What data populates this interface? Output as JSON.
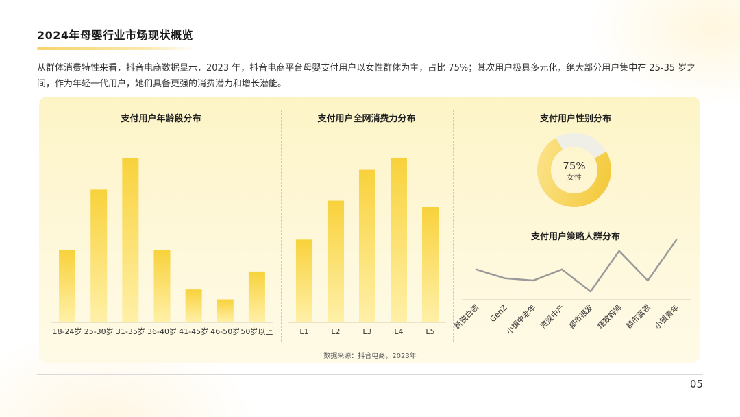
{
  "header": {
    "title": "2024年母婴行业市场现状概览",
    "intro": "从群体消费特性来看，抖音电商数据显示，2023 年，抖音电商平台母婴支付用户以女性群体为主，占比 75%；其次用户极具多元化，绝大部分用户集中在 25-35 岁之间，作为年轻一代用户，她们具备更强的消费潜力和增长潜能。"
  },
  "colors": {
    "bar_top": "#f8d23c",
    "bar_bottom": "#fff0a8",
    "line": "#9a9a9a",
    "donut_main": "#f5cc3a",
    "donut_rest": "#efefe7"
  },
  "chart_data": [
    {
      "type": "bar",
      "title": "支付用户年龄段分布",
      "categories": [
        "18-24岁",
        "25-30岁",
        "31-35岁",
        "36-40岁",
        "41-45岁",
        "46-50岁",
        "50岁以上"
      ],
      "values": [
        44,
        81,
        100,
        44,
        20,
        14,
        31
      ],
      "ylim": [
        0,
        100
      ],
      "grid": false
    },
    {
      "type": "bar",
      "title": "支付用户全网消费力分布",
      "categories": [
        "L1",
        "L2",
        "L3",
        "L4",
        "L5"
      ],
      "values": [
        51,
        75,
        94,
        101,
        71
      ],
      "ylim": [
        0,
        101
      ],
      "grid": false
    },
    {
      "type": "pie",
      "title": "支付用户性别分布",
      "center_value": "75%",
      "center_label": "女性",
      "slices": [
        {
          "label": "女性",
          "value": 75
        },
        {
          "value": 25
        }
      ]
    },
    {
      "type": "line",
      "title": "支付用户策略人群分布",
      "categories": [
        "新锐白领",
        "GenZ",
        "小镇中老年",
        "资深中产",
        "都市银发",
        "精致妈妈",
        "都市蓝领",
        "小镇青年"
      ],
      "values": [
        41,
        29,
        26,
        41,
        11,
        66,
        26,
        81
      ],
      "ylim": [
        0,
        90
      ],
      "grid": false
    }
  ],
  "footer": {
    "source": "数据来源：抖音电商，2023年",
    "page_number": "05"
  }
}
